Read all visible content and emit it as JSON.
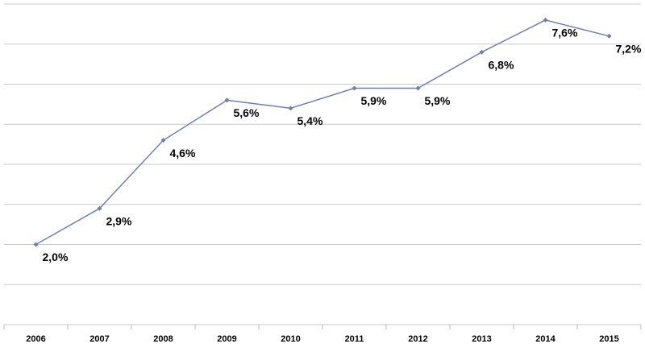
{
  "chart_data": {
    "type": "line",
    "categories": [
      "2006",
      "2007",
      "2008",
      "2009",
      "2010",
      "2011",
      "2012",
      "2013",
      "2014",
      "2015"
    ],
    "values": [
      2.0,
      2.9,
      4.6,
      5.6,
      5.4,
      5.9,
      5.9,
      6.8,
      7.6,
      7.2
    ],
    "value_labels": [
      "2,0%",
      "2,9%",
      "4,6%",
      "5,6%",
      "5,4%",
      "5,9%",
      "5,9%",
      "6,8%",
      "7,6%",
      "7,2%"
    ],
    "color": "#6f7fb3",
    "ylim": [
      0,
      8
    ],
    "yticks": [
      0,
      1,
      2,
      3,
      4,
      5,
      6,
      7,
      8
    ],
    "grid": true
  }
}
